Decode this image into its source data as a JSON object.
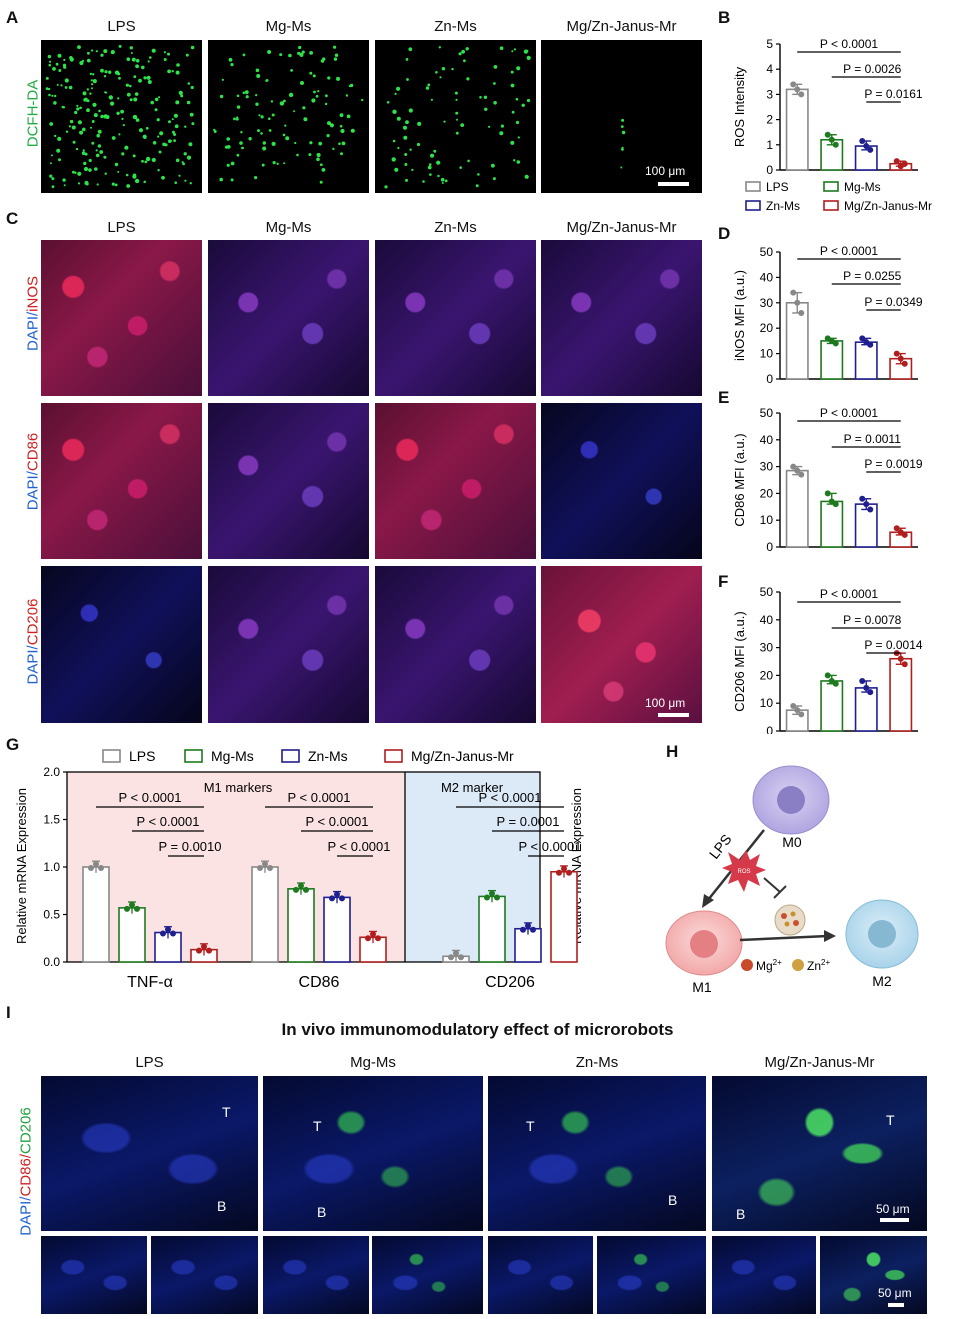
{
  "panel_letters": {
    "A": "A",
    "B": "B",
    "C": "C",
    "D": "D",
    "E": "E",
    "F": "F",
    "G": "G",
    "H": "H",
    "I": "I"
  },
  "groups": [
    "LPS",
    "Mg-Ms",
    "Zn-Ms",
    "Mg/Zn-Janus-Mr"
  ],
  "colors": {
    "LPS": "#888888",
    "Mg-Ms": "#1e7a1e",
    "Zn-Ms": "#1f1f8f",
    "Mg/Zn-Janus-Mr": "#b01e1e"
  },
  "panelA": {
    "row_label": "DCFH-DA",
    "scale": "100 μm"
  },
  "panelC": {
    "row_labels": [
      [
        "DAPI/",
        "iNOS"
      ],
      [
        "DAPI/",
        "CD86"
      ],
      [
        "DAPI/",
        "CD206"
      ]
    ],
    "scale": "100 μm"
  },
  "panelI": {
    "title": "In vivo immunomodulatory effect of microrobots",
    "row_label": [
      "DAPI/",
      "CD86/",
      "CD206"
    ],
    "scale_top": "50 μm",
    "scale_bottom": "50 μm",
    "T": "T",
    "B": "B"
  },
  "panelH": {
    "M0": "M0",
    "M1": "M1",
    "M2": "M2",
    "LPS": "LPS",
    "ROS": "ROS",
    "legend": [
      {
        "ion": "Mg",
        "charge": "2+"
      },
      {
        "ion": "Zn",
        "charge": "2+"
      }
    ]
  },
  "chart_data": [
    {
      "id": "B",
      "type": "bar",
      "ylabel": "ROS Intensity",
      "ylim": [
        0,
        5
      ],
      "yticks": [
        0,
        1,
        2,
        3,
        4,
        5
      ],
      "categories": [
        "LPS",
        "Mg-Ms",
        "Zn-Ms",
        "Mg/Zn-Janus-Mr"
      ],
      "values": [
        3.2,
        1.2,
        0.95,
        0.25
      ],
      "points": [
        [
          3.4,
          3.2,
          3.0
        ],
        [
          1.4,
          1.2,
          1.0
        ],
        [
          1.15,
          0.95,
          0.8
        ],
        [
          0.35,
          0.15,
          0.25
        ]
      ],
      "sig": [
        "P < 0.0001",
        "P = 0.0026",
        "P = 0.0161"
      ],
      "legend": [
        "LPS",
        "Mg-Ms",
        "Zn-Ms",
        "Mg/Zn-Janus-Mr"
      ]
    },
    {
      "id": "D",
      "type": "bar",
      "ylabel": "iNOS MFI (a.u.)",
      "ylim": [
        0,
        50
      ],
      "yticks": [
        0,
        10,
        20,
        30,
        40,
        50
      ],
      "categories": [
        "LPS",
        "Mg-Ms",
        "Zn-Ms",
        "Mg/Zn-Janus-Mr"
      ],
      "values": [
        30,
        15,
        14.5,
        8
      ],
      "points": [
        [
          34,
          30,
          26
        ],
        [
          16,
          15,
          14
        ],
        [
          16,
          14.5,
          13.5
        ],
        [
          10,
          8,
          6
        ]
      ],
      "sig": [
        "P < 0.0001",
        "P = 0.0255",
        "P = 0.0349"
      ]
    },
    {
      "id": "E",
      "type": "bar",
      "ylabel": "CD86 MFI (a.u.)",
      "ylim": [
        0,
        50
      ],
      "yticks": [
        0,
        10,
        20,
        30,
        40,
        50
      ],
      "categories": [
        "LPS",
        "Mg-Ms",
        "Zn-Ms",
        "Mg/Zn-Janus-Mr"
      ],
      "values": [
        28.5,
        17,
        16,
        5.5
      ],
      "points": [
        [
          30,
          28.5,
          27
        ],
        [
          20,
          17,
          16
        ],
        [
          18,
          16,
          14
        ],
        [
          7,
          5.5,
          4.5
        ]
      ],
      "sig": [
        "P < 0.0001",
        "P = 0.0011",
        "P = 0.0019"
      ]
    },
    {
      "id": "F",
      "type": "bar",
      "ylabel": "CD206 MFI (a.u.)",
      "ylim": [
        0,
        50
      ],
      "yticks": [
        0,
        10,
        20,
        30,
        40,
        50
      ],
      "categories": [
        "LPS",
        "Mg-Ms",
        "Zn-Ms",
        "Mg/Zn-Janus-Mr"
      ],
      "values": [
        7.5,
        18,
        15.5,
        26
      ],
      "points": [
        [
          9,
          7.5,
          6
        ],
        [
          20,
          18,
          17
        ],
        [
          18,
          15.5,
          14
        ],
        [
          28,
          26,
          24
        ]
      ],
      "sig": [
        "P < 0.0001",
        "P = 0.0078",
        "P = 0.0014"
      ]
    },
    {
      "id": "G",
      "type": "bar",
      "ylabel": "Relative mRNA Expression",
      "ylabel_right": "Relative mRNA Expression",
      "ylim": [
        0,
        2.0
      ],
      "yticks": [
        "0.0",
        "0.5",
        "1.0",
        "1.5",
        "2.0"
      ],
      "categories": [
        "TNF-α",
        "CD86",
        "CD206"
      ],
      "series": [
        {
          "name": "LPS",
          "values": [
            1.0,
            1.0,
            0.06
          ]
        },
        {
          "name": "Mg-Ms",
          "values": [
            0.57,
            0.77,
            0.69
          ]
        },
        {
          "name": "Zn-Ms",
          "values": [
            0.31,
            0.68,
            0.35
          ]
        },
        {
          "name": "Mg/Zn-Janus-Mr",
          "values": [
            0.13,
            0.26,
            0.95
          ]
        }
      ],
      "group_titles": [
        "M1 markers",
        "M2 marker"
      ],
      "sig": [
        [
          "P < 0.0001",
          "P < 0.0001",
          "P = 0.0010"
        ],
        [
          "P < 0.0001",
          "P < 0.0001",
          "P < 0.0001"
        ],
        [
          "P < 0.0001",
          "P = 0.0001",
          "P < 0.0001"
        ]
      ]
    }
  ]
}
